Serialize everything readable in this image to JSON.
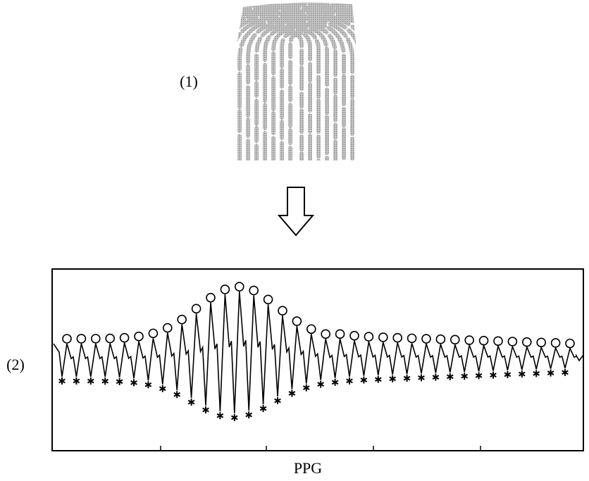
{
  "labels": {
    "finger": "(1)",
    "signal": "(2)",
    "signal_caption": "PPG"
  }
}
